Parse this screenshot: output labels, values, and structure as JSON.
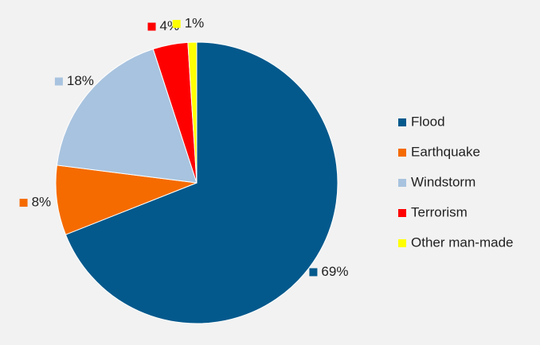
{
  "chart_data": {
    "type": "pie",
    "categories": [
      "Flood",
      "Earthquake",
      "Windstorm",
      "Terrorism",
      "Other man-made"
    ],
    "values": [
      69,
      8,
      18,
      4,
      1
    ],
    "value_labels": [
      "69%",
      "8%",
      "18%",
      "4%",
      "1%"
    ],
    "colors": [
      "#04598c",
      "#f56b00",
      "#a8c3df",
      "#ff0000",
      "#ffff00"
    ],
    "legend": "right"
  }
}
